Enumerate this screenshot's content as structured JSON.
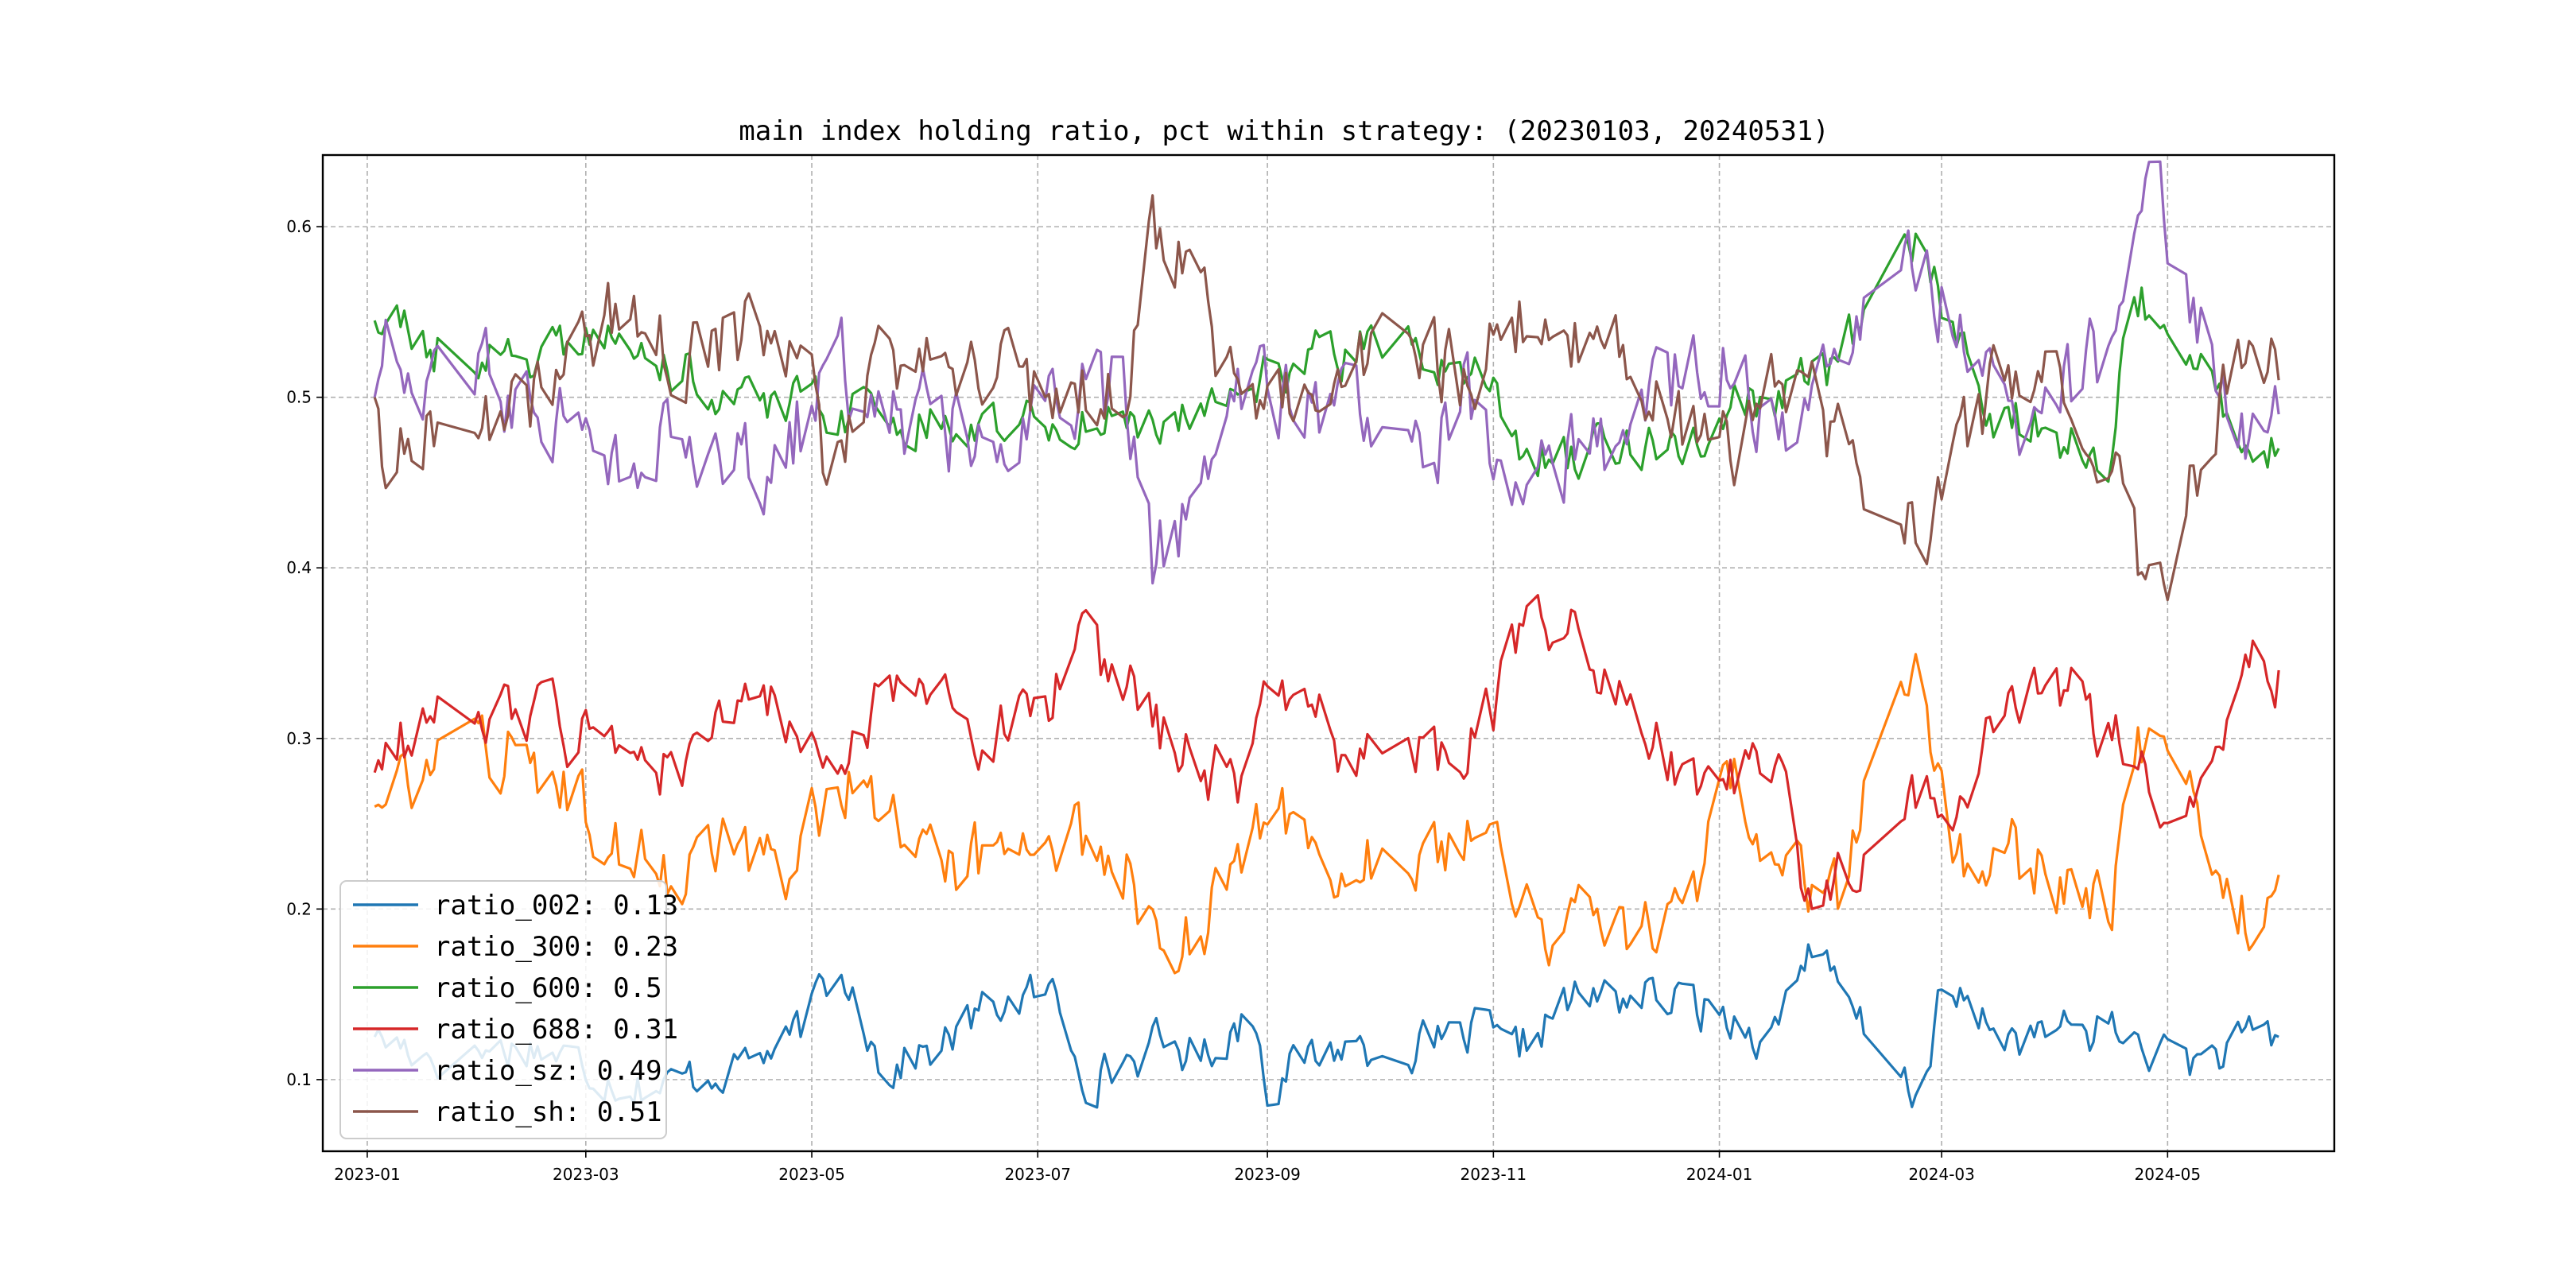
{
  "chart_data": {
    "type": "line",
    "title": "main index holding ratio, pct within strategy: (20230103, 20240531)",
    "xlabel": "",
    "ylabel": "",
    "x_range": [
      "2022-12-20",
      "2024-06-15"
    ],
    "ylim": [
      0.058,
      0.642
    ],
    "x_ticks": [
      {
        "date": "2023-01-01",
        "label": "2023-01"
      },
      {
        "date": "2023-03-01",
        "label": "2023-03"
      },
      {
        "date": "2023-05-01",
        "label": "2023-05"
      },
      {
        "date": "2023-07-01",
        "label": "2023-07"
      },
      {
        "date": "2023-09-01",
        "label": "2023-09"
      },
      {
        "date": "2023-11-01",
        "label": "2023-11"
      },
      {
        "date": "2024-01-01",
        "label": "2024-01"
      },
      {
        "date": "2024-03-01",
        "label": "2024-03"
      },
      {
        "date": "2024-05-01",
        "label": "2024-05"
      }
    ],
    "y_ticks": [
      {
        "value": 0.1,
        "label": "0.1"
      },
      {
        "value": 0.2,
        "label": "0.2"
      },
      {
        "value": 0.3,
        "label": "0.3"
      },
      {
        "value": 0.4,
        "label": "0.4"
      },
      {
        "value": 0.5,
        "label": "0.5"
      },
      {
        "value": 0.6,
        "label": "0.6"
      }
    ],
    "grid": true,
    "legend_position": "lower-left",
    "series": [
      {
        "name": "ratio_002",
        "legend": "ratio_002: 0.13",
        "color": "#1f77b4",
        "noise": 0.012,
        "anchors": [
          [
            "2023-01-03",
            0.125
          ],
          [
            "2023-01-20",
            0.115
          ],
          [
            "2023-02-15",
            0.12
          ],
          [
            "2023-03-10",
            0.1
          ],
          [
            "2023-03-22",
            0.095
          ],
          [
            "2023-04-10",
            0.11
          ],
          [
            "2023-04-25",
            0.12
          ],
          [
            "2023-05-05",
            0.155
          ],
          [
            "2023-05-12",
            0.16
          ],
          [
            "2023-05-20",
            0.105
          ],
          [
            "2023-06-05",
            0.12
          ],
          [
            "2023-06-20",
            0.145
          ],
          [
            "2023-07-05",
            0.15
          ],
          [
            "2023-07-15",
            0.1
          ],
          [
            "2023-08-01",
            0.12
          ],
          [
            "2023-08-15",
            0.115
          ],
          [
            "2023-08-28",
            0.14
          ],
          [
            "2023-09-01",
            0.1
          ],
          [
            "2023-09-20",
            0.12
          ],
          [
            "2023-10-20",
            0.12
          ],
          [
            "2023-10-30",
            0.13
          ],
          [
            "2023-11-05",
            0.11
          ],
          [
            "2023-11-20",
            0.145
          ],
          [
            "2023-12-10",
            0.15
          ],
          [
            "2024-01-01",
            0.14
          ],
          [
            "2024-01-15",
            0.125
          ],
          [
            "2024-01-25",
            0.18
          ],
          [
            "2024-02-05",
            0.14
          ],
          [
            "2024-02-15",
            0.11
          ],
          [
            "2024-02-24",
            0.09
          ],
          [
            "2024-03-01",
            0.15
          ],
          [
            "2024-03-20",
            0.125
          ],
          [
            "2024-04-15",
            0.13
          ],
          [
            "2024-04-25",
            0.12
          ],
          [
            "2024-05-10",
            0.11
          ],
          [
            "2024-05-20",
            0.12
          ],
          [
            "2024-05-31",
            0.125
          ]
        ]
      },
      {
        "name": "ratio_300",
        "legend": "ratio_300: 0.23",
        "color": "#ff7f0e",
        "noise": 0.02,
        "anchors": [
          [
            "2023-01-03",
            0.26
          ],
          [
            "2023-01-10",
            0.27
          ],
          [
            "2023-02-10",
            0.29
          ],
          [
            "2023-03-01",
            0.26
          ],
          [
            "2023-03-20",
            0.22
          ],
          [
            "2023-04-10",
            0.24
          ],
          [
            "2023-04-25",
            0.22
          ],
          [
            "2023-05-05",
            0.27
          ],
          [
            "2023-05-15",
            0.28
          ],
          [
            "2023-06-01",
            0.22
          ],
          [
            "2023-06-20",
            0.23
          ],
          [
            "2023-07-10",
            0.25
          ],
          [
            "2023-07-25",
            0.22
          ],
          [
            "2023-08-05",
            0.17
          ],
          [
            "2023-08-15",
            0.19
          ],
          [
            "2023-09-01",
            0.255
          ],
          [
            "2023-09-20",
            0.22
          ],
          [
            "2023-10-10",
            0.24
          ],
          [
            "2023-10-30",
            0.25
          ],
          [
            "2023-11-10",
            0.19
          ],
          [
            "2023-11-25",
            0.2
          ],
          [
            "2023-12-10",
            0.19
          ],
          [
            "2023-12-25",
            0.21
          ],
          [
            "2024-01-05",
            0.27
          ],
          [
            "2024-01-20",
            0.22
          ],
          [
            "2024-02-05",
            0.21
          ],
          [
            "2024-02-10",
            0.31
          ],
          [
            "2024-02-24",
            0.34
          ],
          [
            "2024-03-05",
            0.22
          ],
          [
            "2024-03-20",
            0.23
          ],
          [
            "2024-04-05",
            0.21
          ],
          [
            "2024-04-15",
            0.19
          ],
          [
            "2024-04-22",
            0.3
          ],
          [
            "2024-05-05",
            0.28
          ],
          [
            "2024-05-20",
            0.2
          ],
          [
            "2024-05-28",
            0.19
          ],
          [
            "2024-05-31",
            0.22
          ]
        ]
      },
      {
        "name": "ratio_600",
        "legend": "ratio_600: 0.5",
        "color": "#2ca02c",
        "noise": 0.014,
        "anchors": [
          [
            "2023-01-03",
            0.545
          ],
          [
            "2023-01-20",
            0.53
          ],
          [
            "2023-02-10",
            0.52
          ],
          [
            "2023-02-25",
            0.535
          ],
          [
            "2023-03-20",
            0.52
          ],
          [
            "2023-04-15",
            0.5
          ],
          [
            "2023-05-10",
            0.49
          ],
          [
            "2023-06-10",
            0.49
          ],
          [
            "2023-07-05",
            0.48
          ],
          [
            "2023-08-10",
            0.485
          ],
          [
            "2023-09-10",
            0.52
          ],
          [
            "2023-10-10",
            0.535
          ],
          [
            "2023-10-30",
            0.51
          ],
          [
            "2023-11-10",
            0.46
          ],
          [
            "2023-12-01",
            0.47
          ],
          [
            "2023-12-25",
            0.48
          ],
          [
            "2024-01-10",
            0.5
          ],
          [
            "2024-02-01",
            0.51
          ],
          [
            "2024-02-10",
            0.56
          ],
          [
            "2024-02-24",
            0.59
          ],
          [
            "2024-03-05",
            0.53
          ],
          [
            "2024-03-15",
            0.49
          ],
          [
            "2024-04-15",
            0.47
          ],
          [
            "2024-04-22",
            0.56
          ],
          [
            "2024-05-10",
            0.52
          ],
          [
            "2024-05-20",
            0.48
          ],
          [
            "2024-05-31",
            0.47
          ]
        ]
      },
      {
        "name": "ratio_688",
        "legend": "ratio_688: 0.31",
        "color": "#d62728",
        "noise": 0.018,
        "anchors": [
          [
            "2023-01-03",
            0.28
          ],
          [
            "2023-01-10",
            0.3
          ],
          [
            "2023-01-25",
            0.32
          ],
          [
            "2023-02-15",
            0.31
          ],
          [
            "2023-03-05",
            0.3
          ],
          [
            "2023-03-25",
            0.28
          ],
          [
            "2023-04-15",
            0.32
          ],
          [
            "2023-05-05",
            0.29
          ],
          [
            "2023-05-25",
            0.33
          ],
          [
            "2023-06-15",
            0.3
          ],
          [
            "2023-07-05",
            0.33
          ],
          [
            "2023-07-15",
            0.35
          ],
          [
            "2023-08-05",
            0.3
          ],
          [
            "2023-08-25",
            0.27
          ],
          [
            "2023-09-01",
            0.35
          ],
          [
            "2023-09-20",
            0.3
          ],
          [
            "2023-10-20",
            0.29
          ],
          [
            "2023-11-01",
            0.32
          ],
          [
            "2023-11-10",
            0.37
          ],
          [
            "2023-11-25",
            0.36
          ],
          [
            "2023-12-10",
            0.3
          ],
          [
            "2023-12-25",
            0.27
          ],
          [
            "2024-01-15",
            0.29
          ],
          [
            "2024-01-25",
            0.2
          ],
          [
            "2024-02-05",
            0.22
          ],
          [
            "2024-02-25",
            0.28
          ],
          [
            "2024-03-05",
            0.24
          ],
          [
            "2024-03-20",
            0.33
          ],
          [
            "2024-04-05",
            0.32
          ],
          [
            "2024-04-20",
            0.3
          ],
          [
            "2024-04-30",
            0.26
          ],
          [
            "2024-05-10",
            0.29
          ],
          [
            "2024-05-20",
            0.34
          ],
          [
            "2024-05-31",
            0.34
          ]
        ]
      },
      {
        "name": "ratio_sz",
        "legend": "ratio_sz: 0.49",
        "color": "#9467bd",
        "noise": 0.024,
        "anchors": [
          [
            "2023-01-03",
            0.5
          ],
          [
            "2023-01-05",
            0.53
          ],
          [
            "2023-01-20",
            0.51
          ],
          [
            "2023-02-10",
            0.505
          ],
          [
            "2023-03-01",
            0.48
          ],
          [
            "2023-03-10",
            0.445
          ],
          [
            "2023-03-25",
            0.47
          ],
          [
            "2023-04-15",
            0.46
          ],
          [
            "2023-05-01",
            0.49
          ],
          [
            "2023-05-05",
            0.55
          ],
          [
            "2023-05-15",
            0.49
          ],
          [
            "2023-06-10",
            0.48
          ],
          [
            "2023-07-05",
            0.5
          ],
          [
            "2023-07-25",
            0.5
          ],
          [
            "2023-08-01",
            0.405
          ],
          [
            "2023-08-10",
            0.43
          ],
          [
            "2023-08-25",
            0.5
          ],
          [
            "2023-09-20",
            0.49
          ],
          [
            "2023-10-15",
            0.47
          ],
          [
            "2023-10-25",
            0.5
          ],
          [
            "2023-11-05",
            0.45
          ],
          [
            "2023-11-20",
            0.46
          ],
          [
            "2023-12-05",
            0.47
          ],
          [
            "2023-12-20",
            0.51
          ],
          [
            "2024-01-05",
            0.54
          ],
          [
            "2024-01-15",
            0.48
          ],
          [
            "2024-02-01",
            0.52
          ],
          [
            "2024-02-24",
            0.585
          ],
          [
            "2024-03-05",
            0.54
          ],
          [
            "2024-03-20",
            0.48
          ],
          [
            "2024-04-05",
            0.5
          ],
          [
            "2024-04-15",
            0.53
          ],
          [
            "2024-04-22",
            0.59
          ],
          [
            "2024-04-28",
            0.61
          ],
          [
            "2024-05-05",
            0.57
          ],
          [
            "2024-05-20",
            0.47
          ],
          [
            "2024-05-31",
            0.49
          ]
        ]
      },
      {
        "name": "ratio_sh",
        "legend": "ratio_sh: 0.51",
        "color": "#8c564b",
        "noise": 0.022,
        "anchors": [
          [
            "2023-01-03",
            0.5
          ],
          [
            "2023-01-05",
            0.465
          ],
          [
            "2023-01-20",
            0.48
          ],
          [
            "2023-02-10",
            0.495
          ],
          [
            "2023-03-01",
            0.52
          ],
          [
            "2023-03-10",
            0.555
          ],
          [
            "2023-03-25",
            0.53
          ],
          [
            "2023-04-15",
            0.54
          ],
          [
            "2023-05-01",
            0.51
          ],
          [
            "2023-05-05",
            0.45
          ],
          [
            "2023-05-15",
            0.51
          ],
          [
            "2023-06-10",
            0.52
          ],
          [
            "2023-07-05",
            0.5
          ],
          [
            "2023-07-25",
            0.5
          ],
          [
            "2023-08-01",
            0.595
          ],
          [
            "2023-08-10",
            0.57
          ],
          [
            "2023-08-25",
            0.5
          ],
          [
            "2023-09-20",
            0.51
          ],
          [
            "2023-10-15",
            0.53
          ],
          [
            "2023-10-25",
            0.5
          ],
          [
            "2023-11-05",
            0.55
          ],
          [
            "2023-11-20",
            0.54
          ],
          [
            "2023-12-05",
            0.53
          ],
          [
            "2023-12-20",
            0.49
          ],
          [
            "2024-01-05",
            0.46
          ],
          [
            "2024-01-15",
            0.52
          ],
          [
            "2024-02-01",
            0.48
          ],
          [
            "2024-02-24",
            0.415
          ],
          [
            "2024-03-05",
            0.46
          ],
          [
            "2024-03-20",
            0.52
          ],
          [
            "2024-04-05",
            0.5
          ],
          [
            "2024-04-15",
            0.47
          ],
          [
            "2024-04-22",
            0.41
          ],
          [
            "2024-04-28",
            0.39
          ],
          [
            "2024-05-05",
            0.43
          ],
          [
            "2024-05-20",
            0.53
          ],
          [
            "2024-05-31",
            0.51
          ]
        ]
      }
    ]
  }
}
